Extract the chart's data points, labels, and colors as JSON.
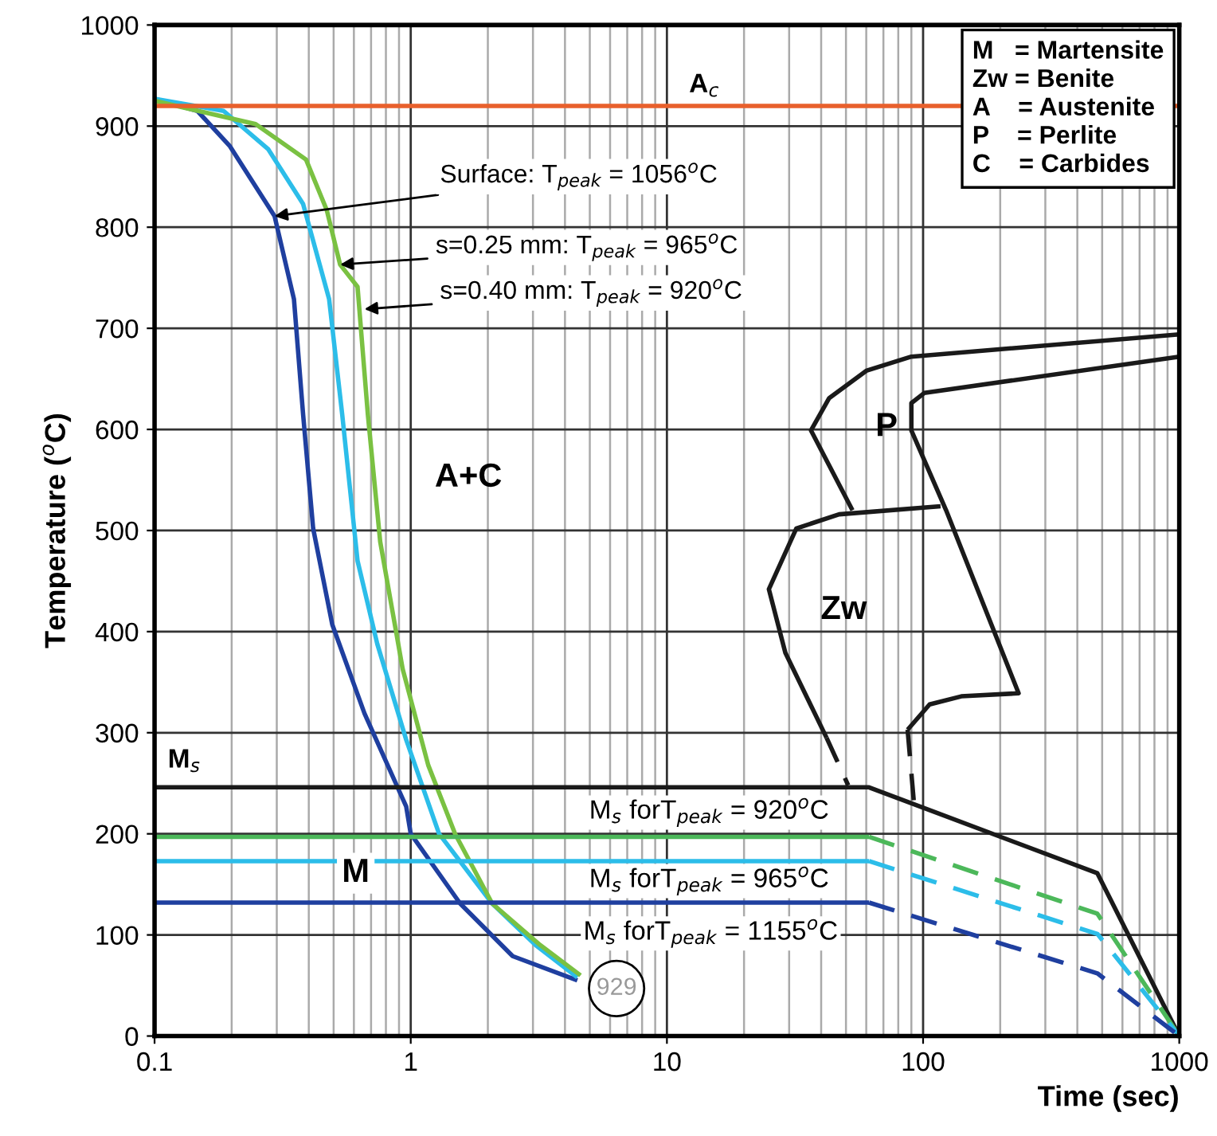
{
  "chart_data": {
    "type": "line",
    "xlabel": "Time (sec)",
    "ylabel": "Temperature ($^{o}$C)",
    "log": "x",
    "xlim": [
      0.1,
      1000
    ],
    "xticks": [
      0.1,
      1,
      10,
      100,
      1000
    ],
    "ylim": [
      0,
      1000
    ],
    "yticks": [
      0,
      100,
      200,
      300,
      400,
      500,
      600,
      700,
      800,
      900,
      1000
    ],
    "grid": true,
    "marker": "none",
    "ref_lines": [
      {
        "axis": "y",
        "value": 920,
        "label": "A$_{c}$",
        "color": "#e8602c",
        "line_style": "solid"
      }
    ],
    "series": [
      {
        "color": "#1f3f9f",
        "line_style": "solid",
        "x": [
          0.1,
          0.147,
          0.197,
          0.294,
          0.35,
          0.38,
          0.416,
          0.494,
          0.66,
          0.96,
          1.0,
          1.56,
          2.5,
          4.47
        ],
        "values": [
          927,
          915,
          880,
          811,
          729,
          615,
          502,
          407,
          319,
          227,
          200,
          131,
          79,
          55
        ]
      },
      {
        "color": "#2cbde9",
        "line_style": "solid",
        "x": [
          0.1,
          0.186,
          0.278,
          0.38,
          0.48,
          0.54,
          0.62,
          0.74,
          0.96,
          1.29,
          2.08,
          3.07,
          4.47
        ],
        "values": [
          927,
          915,
          877,
          823,
          729,
          615,
          470,
          388,
          293,
          200,
          131,
          90,
          58
        ]
      },
      {
        "color": "#7ac142",
        "line_style": "solid",
        "x": [
          0.1,
          0.248,
          0.39,
          0.47,
          0.53,
          0.62,
          0.68,
          0.76,
          0.93,
          1.17,
          1.49,
          2.08,
          3.2,
          4.6
        ],
        "values": [
          925,
          902,
          867,
          817,
          763,
          741,
          615,
          489,
          363,
          268,
          200,
          131,
          90,
          60
        ]
      },
      {
        "color": "#1a1a1a",
        "line_style": "solid",
        "x": [
          0.1,
          61.5,
          479,
          1000
        ],
        "values": [
          246,
          246,
          161,
          0
        ]
      },
      {
        "color": "#4cb85a",
        "line_style": "solid",
        "x": [
          0.1,
          61.5
        ],
        "values": [
          197,
          197
        ]
      },
      {
        "color": "#4cb85a",
        "line_style": "dashed",
        "x": [
          61.5,
          479,
          1000
        ],
        "values": [
          197,
          121,
          0
        ]
      },
      {
        "color": "#2cbde9",
        "line_style": "solid",
        "x": [
          0.1,
          61.5
        ],
        "values": [
          173,
          173
        ]
      },
      {
        "color": "#2cbde9",
        "line_style": "dashed",
        "x": [
          61.5,
          479,
          1000
        ],
        "values": [
          173,
          101,
          0
        ]
      },
      {
        "color": "#1f3f9f",
        "line_style": "solid",
        "x": [
          0.1,
          61.5
        ],
        "values": [
          132,
          132
        ]
      },
      {
        "color": "#1f3f9f",
        "line_style": "dashed",
        "x": [
          61.5,
          479,
          1000
        ],
        "values": [
          132,
          62,
          0
        ]
      },
      {
        "color": "#1a1a1a",
        "line_style": "solid",
        "x": [
          1000,
          90,
          60,
          43,
          36.5,
          53
        ],
        "values": [
          694,
          672,
          658,
          631,
          599,
          520
        ]
      },
      {
        "color": "#1a1a1a",
        "line_style": "solid",
        "x": [
          1000,
          101,
          90,
          90,
          123,
          236,
          141,
          106,
          87
        ],
        "values": [
          672,
          636,
          626,
          599,
          520,
          339,
          336,
          328,
          303
        ]
      },
      {
        "color": "#1a1a1a",
        "line_style": "dashed",
        "x": [
          87,
          92
        ],
        "values": [
          303,
          232
        ]
      },
      {
        "color": "#1a1a1a",
        "line_style": "solid",
        "x": [
          117,
          47,
          32,
          25,
          29,
          42
        ],
        "values": [
          524,
          516,
          502,
          442,
          379,
          295
        ]
      },
      {
        "color": "#1a1a1a",
        "line_style": "dashed",
        "x": [
          42,
          51
        ],
        "values": [
          295,
          248
        ]
      }
    ],
    "annotations": [
      {
        "text": "Surface: T$_{peak}$ = 1056$^{o}$C",
        "x": 0.294,
        "y": 811
      },
      {
        "text": "s=0.25 mm: T$_{peak}$ = 965$^{o}$C",
        "x": 0.53,
        "y": 763
      },
      {
        "text": "s=0.40 mm: T$_{peak}$ = 920$^{o}$C",
        "x": 0.66,
        "y": 719
      },
      {
        "text": "M$_{s}$",
        "x": 0.1,
        "y": 246
      },
      {
        "text": "M$_{s}$ forT$_{peak}$ = 920$^{o}$C",
        "x": 61.5,
        "y": 197
      },
      {
        "text": "M$_{s}$ forT$_{peak}$ = 965$^{o}$C",
        "x": 61.5,
        "y": 173
      },
      {
        "text": "M$_{s}$ forT$_{peak}$ = 1155$^{o}$C",
        "x": 61.5,
        "y": 132
      },
      "929",
      "A+C",
      "M",
      "P",
      "Zw",
      "M   = Martensite\nZw = Benite\nA    = Austenite\nP    = Perlite\nC    = Carbides"
    ]
  }
}
